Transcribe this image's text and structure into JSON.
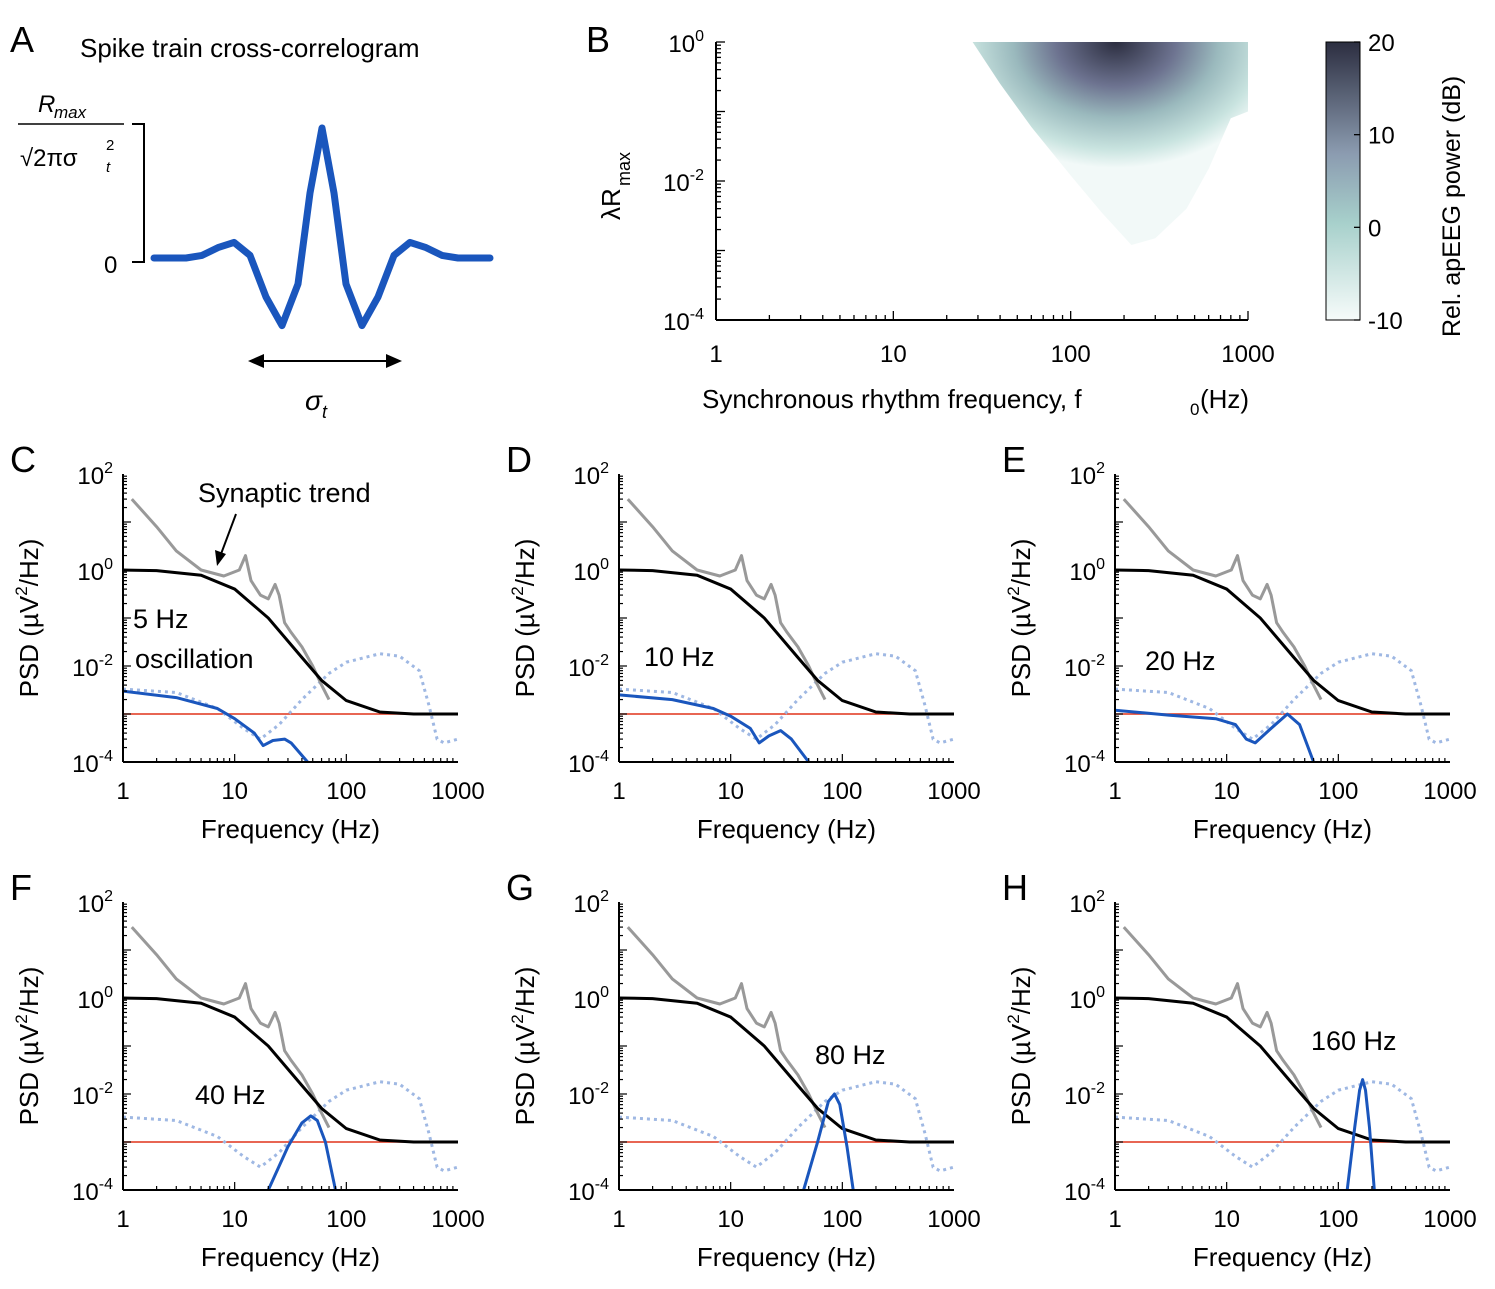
{
  "colors": {
    "trend": "#000000",
    "total": "#999999",
    "oscillation": "#1a56bd",
    "oscillation_dotted": "#9fb8e3",
    "baseline": "#e0331a",
    "heat_low": "#f4faf9",
    "heat_mid": "#8fc2bd",
    "heat_high": "#2d2f42"
  },
  "panel_A": {
    "letter": "A",
    "title": "Spike train cross-correlogram",
    "y_top_label_num": "R",
    "y_top_label_num_sub": "max",
    "y_top_label_den": "√2πσ",
    "y_top_label_den_sup": "2",
    "y_top_label_den_sub": "t",
    "y_zero_label": "0",
    "width_label": "σ",
    "width_label_sub": "t"
  },
  "panel_B": {
    "letter": "B",
    "ylabel": "λR",
    "ylabel_sub": "max",
    "xlabel": "Synchronous rhythm frequency, f",
    "xlabel_sub": "0",
    "xlabel_unit": " (Hz)",
    "xticks": [
      "1",
      "10",
      "100",
      "1000"
    ],
    "yticks": [
      {
        "base": "10",
        "exp": "0"
      },
      {
        "base": "10",
        "exp": "-2"
      },
      {
        "base": "10",
        "exp": "-4"
      }
    ],
    "colorbar_label": "Rel. apEEG power (dB)",
    "colorbar_ticks": [
      "20",
      "10",
      "0",
      "-10"
    ]
  },
  "psd_axis": {
    "ylabel_prefix": "PSD (µV",
    "ylabel_sup": "2",
    "ylabel_suffix": "/Hz)",
    "xlabel": "Frequency (Hz)",
    "xticks": [
      "1",
      "10",
      "100",
      "1000"
    ],
    "yticks": [
      {
        "base": "10",
        "exp": "2"
      },
      {
        "base": "10",
        "exp": "0"
      },
      {
        "base": "10",
        "exp": "-2"
      },
      {
        "base": "10",
        "exp": "-4"
      }
    ]
  },
  "annotations": {
    "synaptic_trend": "Synaptic trend",
    "C_label_1": "5 Hz",
    "C_label_2": "oscillation",
    "D_label": "10 Hz",
    "E_label": "20 Hz",
    "F_label": "40 Hz",
    "G_label": "80 Hz",
    "H_label": "160 Hz"
  },
  "chart_data": [
    {
      "panel": "A",
      "type": "line",
      "title": "Spike train cross-correlogram",
      "series": [
        {
          "x": [
            -2.1,
            -1.7,
            -1.5,
            -1.3,
            -1.1,
            -0.9,
            -0.7,
            -0.5,
            -0.3,
            -0.15,
            0,
            0.15,
            0.3,
            0.5,
            0.7,
            0.9,
            1.1,
            1.3,
            1.5,
            1.7,
            2.1
          ],
          "y": [
            0.0,
            0.0,
            0.02,
            0.08,
            0.12,
            0.02,
            -0.3,
            -0.52,
            -0.2,
            0.5,
            1.0,
            0.5,
            -0.2,
            -0.52,
            -0.3,
            0.02,
            0.12,
            0.08,
            0.02,
            0.0,
            0.0
          ]
        }
      ]
    },
    {
      "panel": "B",
      "type": "heatmap",
      "xlabel": "Synchronous rhythm frequency, f0 (Hz)",
      "ylabel": "λRmax",
      "xscale": "log",
      "yscale": "log",
      "xlim": [
        1,
        1000
      ],
      "ylim": [
        0.0001,
        1
      ],
      "colorbar": {
        "label": "Rel. apEEG power (dB)",
        "range": [
          -10,
          20
        ]
      },
      "region_lower_boundary": {
        "f": [
          28,
          40,
          60,
          100,
          150,
          220,
          300,
          450,
          600,
          800,
          1000
        ],
        "lambda_r": [
          1,
          0.25,
          0.06,
          0.012,
          0.0035,
          0.0012,
          0.0015,
          0.004,
          0.015,
          0.08,
          0.1
        ]
      },
      "peak": {
        "f": 230,
        "lambda_r": 1,
        "db": 20
      }
    },
    {
      "panel": "C-H",
      "type": "line",
      "xlabel": "Frequency (Hz)",
      "ylabel": "PSD (µV2/Hz)",
      "xscale": "log",
      "yscale": "log",
      "xlim": [
        1,
        1000
      ],
      "ylim": [
        0.0001,
        100
      ],
      "series": [
        {
          "name": "Synaptic trend",
          "x": [
            1,
            2,
            5,
            10,
            20,
            40,
            60,
            100,
            200,
            400,
            1000
          ],
          "y": [
            1.0,
            0.97,
            0.78,
            0.4,
            0.1,
            0.015,
            0.005,
            0.0019,
            0.0011,
            0.001,
            0.001
          ]
        },
        {
          "x": [
            1.2,
            2,
            3,
            5,
            8,
            11,
            12.5,
            14,
            17,
            20,
            23,
            25,
            28,
            32,
            40,
            50,
            60,
            70
          ],
          "y": [
            30,
            8,
            2.5,
            1.0,
            0.75,
            1.0,
            2.0,
            0.6,
            0.3,
            0.25,
            0.5,
            0.3,
            0.08,
            0.05,
            0.025,
            0.01,
            0.004,
            0.002
          ]
        },
        {
          "x": [
            1,
            3,
            7,
            12,
            17,
            25,
            40,
            70,
            100,
            200,
            300,
            450,
            550,
            650,
            750,
            1000
          ],
          "y": [
            0.0033,
            0.0028,
            0.0013,
            0.0005,
            0.0003,
            0.0006,
            0.002,
            0.007,
            0.012,
            0.018,
            0.016,
            0.008,
            0.0015,
            0.0003,
            0.00025,
            0.0003
          ]
        },
        {
          "x": [
            1,
            1000
          ],
          "y": [
            0.001,
            0.001
          ]
        }
      ],
      "oscillation_curves": {
        "C": {
          "f0": 5,
          "x": [
            1,
            3,
            7,
            10,
            15,
            18,
            22,
            28,
            32,
            45
          ],
          "y": [
            0.003,
            0.0022,
            0.0013,
            0.0008,
            0.0004,
            0.00022,
            0.00028,
            0.0003,
            0.00025,
            0.0001
          ]
        },
        "D": {
          "f0": 10,
          "x": [
            1,
            3,
            7,
            10,
            15,
            18,
            22,
            28,
            35,
            50
          ],
          "y": [
            0.0025,
            0.002,
            0.0013,
            0.0009,
            0.0005,
            0.00025,
            0.00035,
            0.00045,
            0.0003,
            0.0001
          ]
        },
        "E": {
          "f0": 20,
          "x": [
            1,
            3,
            8,
            12,
            15,
            18,
            25,
            35,
            45,
            60
          ],
          "y": [
            0.0012,
            0.00095,
            0.0008,
            0.0006,
            0.0003,
            0.00025,
            0.0005,
            0.001,
            0.0006,
            0.0001
          ]
        },
        "F": {
          "f0": 40,
          "x": [
            20,
            30,
            40,
            48,
            55,
            65,
            80
          ],
          "y": [
            0.0001,
            0.0008,
            0.0025,
            0.0035,
            0.0028,
            0.001,
            0.0001
          ]
        },
        "G": {
          "f0": 80,
          "x": [
            45,
            60,
            75,
            85,
            95,
            110,
            125
          ],
          "y": [
            0.0001,
            0.001,
            0.007,
            0.01,
            0.006,
            0.0008,
            0.0001
          ]
        },
        "H": {
          "f0": 160,
          "x": [
            120,
            140,
            155,
            165,
            175,
            190,
            210
          ],
          "y": [
            0.0001,
            0.002,
            0.012,
            0.02,
            0.012,
            0.002,
            0.0001
          ]
        }
      }
    }
  ]
}
